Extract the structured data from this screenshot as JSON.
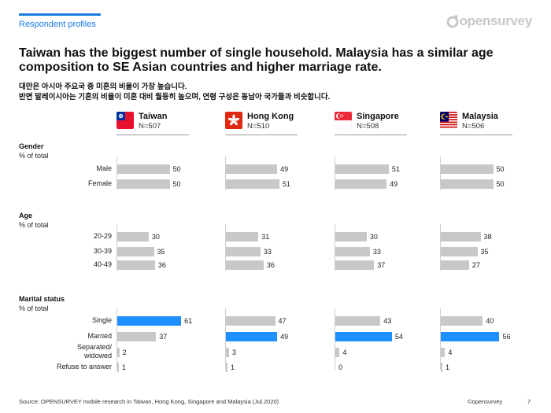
{
  "header": {
    "section_tag": "Respondent profiles",
    "logo_text": "opensurvey",
    "title": "Taiwan has the biggest number of single household. Malaysia has a similar age composition to SE Asian countries and higher marriage rate.",
    "subtitle_line1": "대만은 아시아 주요국 중 미혼의 비율이 가장 높습니다.",
    "subtitle_line2": "반면 말레이시아는 기혼의 비율이 미혼 대비 월등히 높으며, 연령 구성은 동남아 국가들과 비슷합니다."
  },
  "countries": [
    {
      "name": "Taiwan",
      "n": "N=507",
      "flag": "taiwan-flag-icon"
    },
    {
      "name": "Hong Kong",
      "n": "N=510",
      "flag": "hong-kong-flag-icon"
    },
    {
      "name": "Singapore",
      "n": "N=508",
      "flag": "singapore-flag-icon"
    },
    {
      "name": "Malaysia",
      "n": "N=506",
      "flag": "malaysia-flag-icon"
    }
  ],
  "colors": {
    "accent": "#1a7ae0",
    "bar_default": "#c8c8c8",
    "bar_highlight": "#1e90ff"
  },
  "chart_data": {
    "type": "bar",
    "orientation": "horizontal",
    "unit": "% of total",
    "series_names": [
      "Taiwan",
      "Hong Kong",
      "Singapore",
      "Malaysia"
    ],
    "sections": [
      {
        "title": "Gender",
        "subtitle": "% of total",
        "rows": [
          {
            "label": "Male",
            "values": [
              50,
              49,
              51,
              50
            ],
            "highlight": [
              false,
              false,
              false,
              false
            ]
          },
          {
            "label": "Female",
            "values": [
              50,
              51,
              49,
              50
            ],
            "highlight": [
              false,
              false,
              false,
              false
            ]
          }
        ]
      },
      {
        "title": "Age",
        "subtitle": "% of total",
        "rows": [
          {
            "label": "20-29",
            "values": [
              30,
              31,
              30,
              38
            ],
            "highlight": [
              false,
              false,
              false,
              false
            ]
          },
          {
            "label": "30-39",
            "values": [
              35,
              33,
              33,
              35
            ],
            "highlight": [
              false,
              false,
              false,
              false
            ]
          },
          {
            "label": "40-49",
            "values": [
              36,
              36,
              37,
              27
            ],
            "highlight": [
              false,
              false,
              false,
              false
            ]
          }
        ]
      },
      {
        "title": "Marital status",
        "subtitle": "% of total",
        "rows": [
          {
            "label": "Single",
            "values": [
              61,
              47,
              43,
              40
            ],
            "highlight": [
              true,
              false,
              false,
              false
            ]
          },
          {
            "label": "Married",
            "values": [
              37,
              49,
              54,
              56
            ],
            "highlight": [
              false,
              true,
              true,
              true
            ]
          },
          {
            "label": "Separated/ widowed",
            "values": [
              2,
              3,
              4,
              4
            ],
            "highlight": [
              false,
              false,
              false,
              false
            ]
          },
          {
            "label": "Refuse to answer",
            "values": [
              1,
              1,
              0,
              1
            ],
            "highlight": [
              false,
              false,
              false,
              false
            ]
          }
        ]
      }
    ]
  },
  "footer": {
    "source": "Source: OPENSURVEY mobile research in Taiwan, Hong Kong, Singapore and Malaysia (Jul.2020)",
    "copyright": "©opensurvey",
    "page_number": "7"
  }
}
